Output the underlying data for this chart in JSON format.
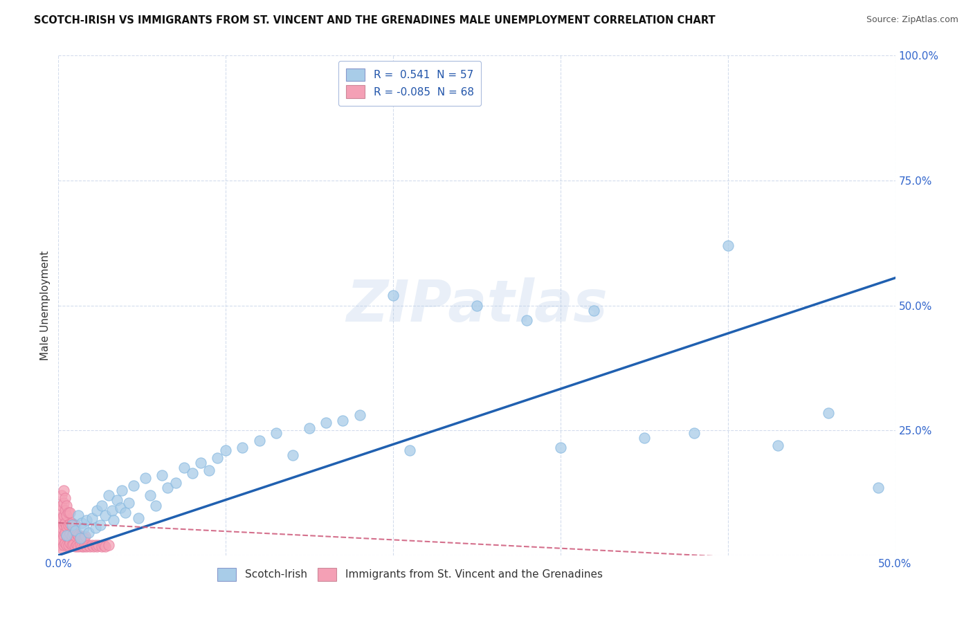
{
  "title": "SCOTCH-IRISH VS IMMIGRANTS FROM ST. VINCENT AND THE GRENADINES MALE UNEMPLOYMENT CORRELATION CHART",
  "source": "Source: ZipAtlas.com",
  "ylabel": "Male Unemployment",
  "xlim": [
    0,
    0.5
  ],
  "ylim": [
    0,
    1.0
  ],
  "blue_R": 0.541,
  "blue_N": 57,
  "pink_R": -0.085,
  "pink_N": 68,
  "legend1_label": "Scotch-Irish",
  "legend2_label": "Immigrants from St. Vincent and the Grenadines",
  "blue_color": "#a8cce8",
  "blue_edge_color": "#85b8e0",
  "pink_color": "#f4a0b5",
  "pink_edge_color": "#e880a0",
  "blue_line_color": "#2060b0",
  "pink_line_color": "#d06080",
  "background_color": "#ffffff",
  "watermark": "ZIPatlas",
  "blue_line_x0": 0.0,
  "blue_line_y0": 0.0,
  "blue_line_x1": 0.5,
  "blue_line_y1": 0.555,
  "pink_line_x0": 0.0,
  "pink_line_y0": 0.065,
  "pink_line_x1": 0.5,
  "pink_line_y1": -0.02,
  "blue_dots_x": [
    0.005,
    0.008,
    0.01,
    0.012,
    0.013,
    0.014,
    0.015,
    0.017,
    0.018,
    0.02,
    0.022,
    0.023,
    0.025,
    0.026,
    0.028,
    0.03,
    0.032,
    0.033,
    0.035,
    0.037,
    0.038,
    0.04,
    0.042,
    0.045,
    0.048,
    0.052,
    0.055,
    0.058,
    0.062,
    0.065,
    0.07,
    0.075,
    0.08,
    0.085,
    0.09,
    0.095,
    0.1,
    0.11,
    0.12,
    0.13,
    0.14,
    0.15,
    0.16,
    0.17,
    0.18,
    0.2,
    0.21,
    0.25,
    0.28,
    0.3,
    0.32,
    0.35,
    0.38,
    0.4,
    0.43,
    0.46,
    0.49
  ],
  "blue_dots_y": [
    0.04,
    0.06,
    0.05,
    0.08,
    0.035,
    0.065,
    0.055,
    0.07,
    0.045,
    0.075,
    0.055,
    0.09,
    0.06,
    0.1,
    0.08,
    0.12,
    0.09,
    0.07,
    0.11,
    0.095,
    0.13,
    0.085,
    0.105,
    0.14,
    0.075,
    0.155,
    0.12,
    0.1,
    0.16,
    0.135,
    0.145,
    0.175,
    0.165,
    0.185,
    0.17,
    0.195,
    0.21,
    0.215,
    0.23,
    0.245,
    0.2,
    0.255,
    0.265,
    0.27,
    0.28,
    0.52,
    0.21,
    0.5,
    0.47,
    0.215,
    0.49,
    0.235,
    0.245,
    0.62,
    0.22,
    0.285,
    0.135
  ],
  "pink_dots_x": [
    0.001,
    0.001,
    0.001,
    0.001,
    0.001,
    0.002,
    0.002,
    0.002,
    0.002,
    0.002,
    0.002,
    0.003,
    0.003,
    0.003,
    0.003,
    0.003,
    0.003,
    0.004,
    0.004,
    0.004,
    0.004,
    0.004,
    0.005,
    0.005,
    0.005,
    0.005,
    0.005,
    0.006,
    0.006,
    0.006,
    0.006,
    0.007,
    0.007,
    0.007,
    0.007,
    0.008,
    0.008,
    0.008,
    0.009,
    0.009,
    0.009,
    0.01,
    0.01,
    0.01,
    0.011,
    0.011,
    0.012,
    0.012,
    0.013,
    0.013,
    0.014,
    0.014,
    0.015,
    0.015,
    0.016,
    0.016,
    0.017,
    0.018,
    0.019,
    0.02,
    0.021,
    0.022,
    0.023,
    0.024,
    0.026,
    0.027,
    0.028,
    0.03
  ],
  "pink_dots_y": [
    0.02,
    0.035,
    0.05,
    0.07,
    0.09,
    0.015,
    0.03,
    0.055,
    0.075,
    0.1,
    0.12,
    0.02,
    0.04,
    0.06,
    0.08,
    0.105,
    0.13,
    0.025,
    0.045,
    0.065,
    0.09,
    0.115,
    0.02,
    0.038,
    0.058,
    0.08,
    0.1,
    0.02,
    0.038,
    0.06,
    0.085,
    0.025,
    0.042,
    0.063,
    0.085,
    0.02,
    0.04,
    0.065,
    0.022,
    0.042,
    0.062,
    0.018,
    0.038,
    0.06,
    0.02,
    0.042,
    0.018,
    0.04,
    0.02,
    0.038,
    0.018,
    0.038,
    0.018,
    0.036,
    0.02,
    0.038,
    0.018,
    0.02,
    0.018,
    0.02,
    0.018,
    0.02,
    0.018,
    0.02,
    0.018,
    0.02,
    0.018,
    0.02
  ]
}
